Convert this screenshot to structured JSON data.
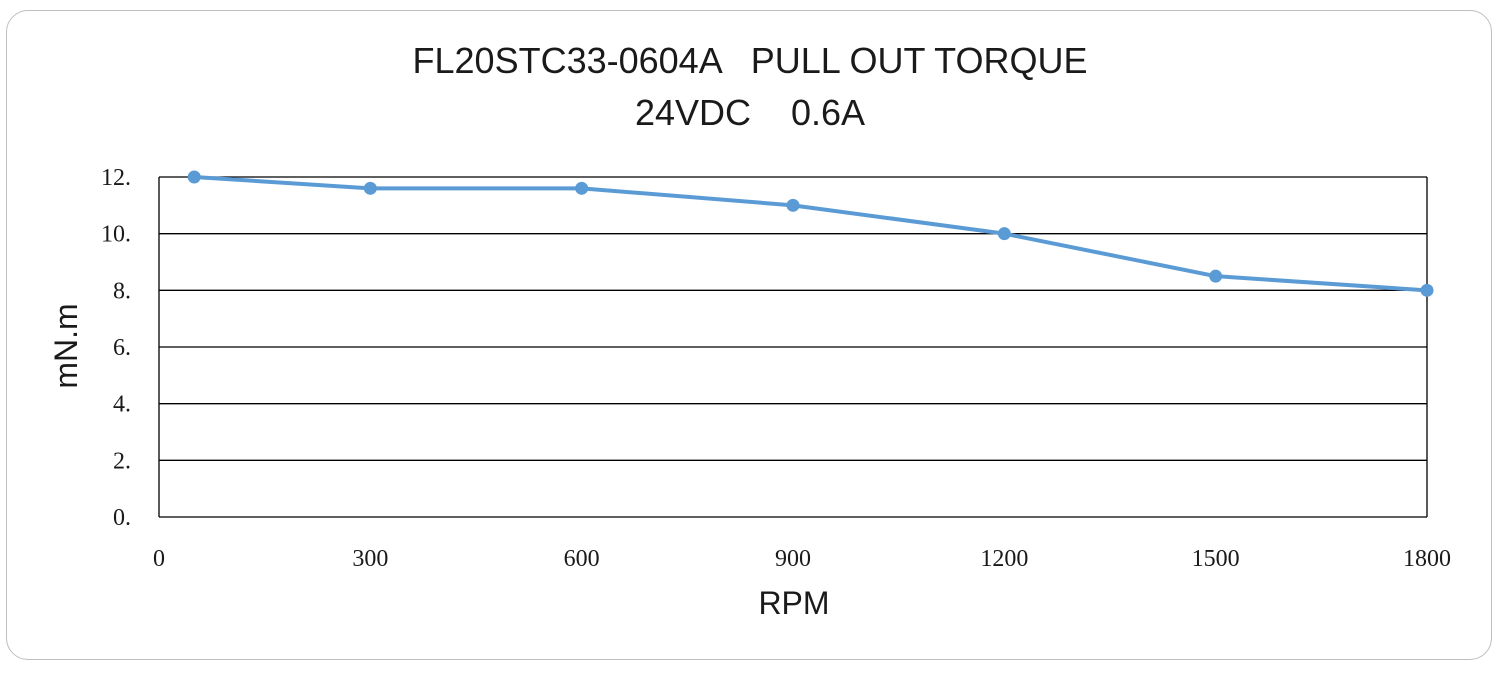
{
  "chart_data": {
    "type": "line",
    "title": "FL20STC33-0604A   PULL OUT TORQUE",
    "subtitle": "24VDC    0.6A",
    "xlabel": "RPM",
    "ylabel": "mN.m",
    "xlim": [
      0,
      1800
    ],
    "ylim": [
      0,
      12
    ],
    "x_ticks": [
      "0",
      "300",
      "600",
      "900",
      "1200",
      "1500",
      "1800"
    ],
    "y_ticks": [
      "0.",
      "2.",
      "4.",
      "6.",
      "8.",
      "10.",
      "12."
    ],
    "grid": true,
    "legend": "none",
    "series": [
      {
        "color": "#5B9BD5",
        "x": [
          50,
          300,
          600,
          900,
          1200,
          1500,
          1800
        ],
        "y": [
          12.0,
          11.6,
          11.6,
          11.0,
          10.0,
          8.5,
          8.0
        ]
      }
    ]
  }
}
